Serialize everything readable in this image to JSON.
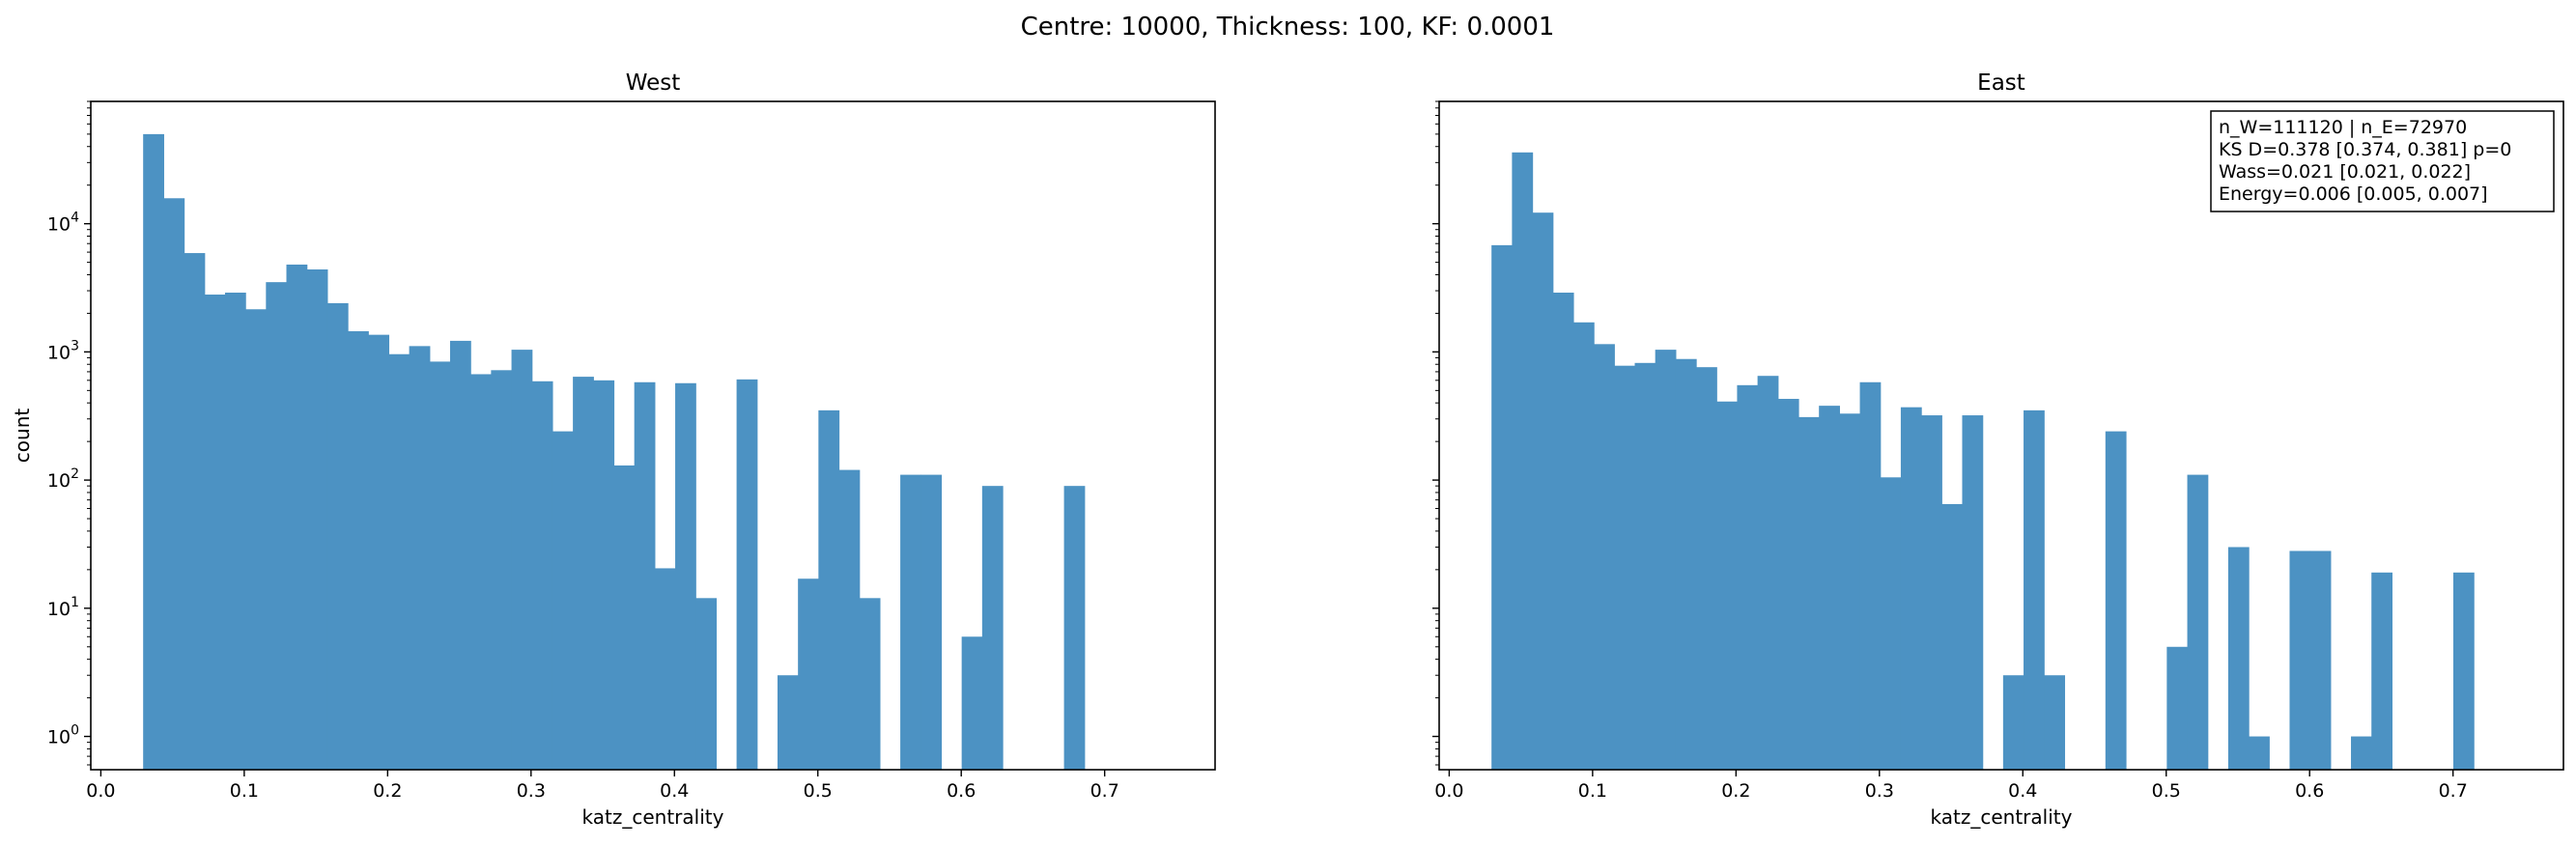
{
  "figure_title": "Centre: 10000, Thickness: 100, KF: 0.0001",
  "chart_data": [
    {
      "type": "bar",
      "subtype": "histogram",
      "title": "West",
      "xlabel": "katz_centrality",
      "ylabel": "count",
      "yscale": "log",
      "xlim": [
        -0.007,
        0.777
      ],
      "ylim": [
        0.55,
        90000
      ],
      "bin_start": 0.0295,
      "bin_width": 0.01427,
      "values": [
        50000,
        15800,
        5900,
        2800,
        2900,
        2150,
        3500,
        4800,
        4400,
        2400,
        1450,
        1360,
        960,
        1110,
        840,
        1220,
        670,
        720,
        1040,
        590,
        240,
        640,
        600,
        130,
        580,
        20.5,
        570,
        12,
        0,
        610,
        0,
        3,
        17,
        350,
        120,
        12,
        0,
        110,
        110,
        0,
        6,
        90,
        0,
        0,
        0,
        90
      ],
      "x_ticks": [
        "0.0",
        "0.1",
        "0.2",
        "0.3",
        "0.4",
        "0.5",
        "0.6",
        "0.7"
      ],
      "x_tick_values": [
        0.0,
        0.1,
        0.2,
        0.3,
        0.4,
        0.5,
        0.6,
        0.7
      ],
      "y_ticks": [
        {
          "value": 1,
          "base": "10",
          "exp": "0"
        },
        {
          "value": 10,
          "base": "10",
          "exp": "1"
        },
        {
          "value": 100,
          "base": "10",
          "exp": "2"
        },
        {
          "value": 1000,
          "base": "10",
          "exp": "3"
        },
        {
          "value": 10000,
          "base": "10",
          "exp": "4"
        }
      ],
      "color": "#4c92c3",
      "grid": false
    },
    {
      "type": "bar",
      "subtype": "histogram",
      "title": "East",
      "xlabel": "katz_centrality",
      "ylabel": "",
      "yscale": "log",
      "xlim": [
        -0.007,
        0.777
      ],
      "ylim": [
        0.55,
        90000
      ],
      "bin_start": 0.0295,
      "bin_width": 0.01427,
      "values": [
        6800,
        36000,
        12200,
        2900,
        1700,
        1150,
        780,
        820,
        1040,
        880,
        760,
        410,
        550,
        650,
        430,
        310,
        380,
        330,
        580,
        105,
        370,
        320,
        65,
        320,
        0,
        3,
        350,
        3,
        0,
        0,
        240,
        0,
        0,
        5,
        110,
        0,
        30,
        1,
        0,
        28,
        28,
        0,
        1,
        19,
        0,
        0,
        0,
        19
      ],
      "x_ticks": [
        "0.0",
        "0.1",
        "0.2",
        "0.3",
        "0.4",
        "0.5",
        "0.6",
        "0.7"
      ],
      "x_tick_values": [
        0.0,
        0.1,
        0.2,
        0.3,
        0.4,
        0.5,
        0.6,
        0.7
      ],
      "y_ticks": [
        {
          "value": 1,
          "base": "",
          "exp": ""
        },
        {
          "value": 10,
          "base": "",
          "exp": ""
        },
        {
          "value": 100,
          "base": "",
          "exp": ""
        },
        {
          "value": 1000,
          "base": "",
          "exp": ""
        },
        {
          "value": 10000,
          "base": "",
          "exp": ""
        }
      ],
      "color": "#4c92c3",
      "grid": false,
      "annotation": {
        "placement": "top-right",
        "lines": [
          "n_W=111120 | n_E=72970",
          "KS D=0.378 [0.374, 0.381]  p=0",
          "Wass=0.021 [0.021, 0.022]",
          "Energy=0.006 [0.005, 0.007]"
        ]
      }
    }
  ]
}
